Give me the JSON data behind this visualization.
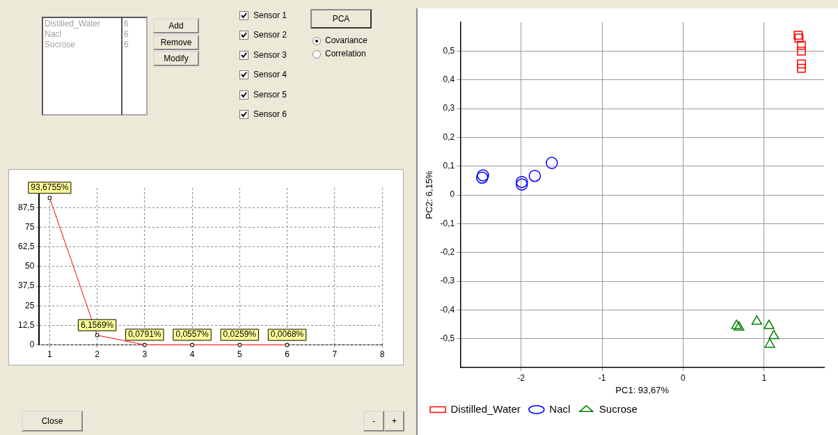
{
  "chart_data": [
    {
      "type": "other",
      "annotations": [
        "Distilled_Water",
        "6",
        "Nacl",
        "6",
        "Sucrose",
        "6",
        "Add",
        "Remove",
        "Modify",
        "Sensor 1",
        "Sensor 2",
        "Sensor 3",
        "Sensor 4",
        "Sensor 5",
        "Sensor 6",
        "PCA",
        "Covariance",
        "Correlation",
        "Close",
        "-",
        "+"
      ]
    },
    {
      "type": "line",
      "x": [
        1,
        2,
        3,
        4,
        5,
        6
      ],
      "values": [
        93.6755,
        6.1569,
        0.0791,
        0.0557,
        0.0259,
        0.0068
      ],
      "value_labels": [
        "93,6755%",
        "6,1569%",
        "0,0791%",
        "0,0557%",
        "0,0259%",
        "0,0068%"
      ],
      "color": "#ff0000",
      "marker": "square",
      "xlim": [
        0.78,
        8
      ],
      "xticks": [
        1,
        2,
        3,
        4,
        5,
        6,
        7,
        8
      ],
      "ylim": [
        0,
        100
      ],
      "yticks": [
        0,
        {
          "value": 12.5,
          "label": "12,5"
        },
        25,
        {
          "value": 37.5,
          "label": "37,5"
        },
        50,
        {
          "value": 62.5,
          "label": "62,5"
        },
        75,
        {
          "value": 87.5,
          "label": "87,5"
        }
      ],
      "grid": true
    },
    {
      "type": "scatter",
      "xlabel": "PC1: 93,67%",
      "ylabel": "PC2: 6,15%",
      "xlim": [
        -2.75,
        1.74
      ],
      "xticks": [
        -2,
        -1,
        0,
        1
      ],
      "ylim": [
        -0.6,
        0.6
      ],
      "yticks": [
        {
          "value": -0.5,
          "label": "-0,5"
        },
        {
          "value": -0.4,
          "label": "-0,4"
        },
        {
          "value": -0.3,
          "label": "-0,3"
        },
        {
          "value": -0.2,
          "label": "-0,2"
        },
        {
          "value": -0.1,
          "label": "-0,1"
        },
        0,
        {
          "value": 0.1,
          "label": "0,1"
        },
        {
          "value": 0.2,
          "label": "0,2"
        },
        {
          "value": 0.3,
          "label": "0,3"
        },
        {
          "value": 0.4,
          "label": "0,4"
        },
        {
          "value": 0.5,
          "label": "0,5"
        }
      ],
      "grid": true,
      "legend": "bottom",
      "series": [
        {
          "name": "Distilled_Water",
          "color": "#ff0000",
          "marker": "square",
          "x": [
            1.42,
            1.43,
            1.46,
            1.46,
            1.46,
            1.46
          ],
          "values": [
            0.555,
            0.545,
            0.52,
            0.5,
            0.455,
            0.44
          ]
        },
        {
          "name": "Nacl",
          "color": "#0000ff",
          "marker": "circle",
          "x": [
            -2.48,
            -2.47,
            -1.99,
            -1.99,
            -1.83,
            -1.62
          ],
          "values": [
            0.06,
            0.068,
            0.036,
            0.045,
            0.066,
            0.111
          ]
        },
        {
          "name": "Sucrose",
          "color": "#008000",
          "marker": "triangle",
          "x": [
            0.66,
            0.69,
            0.91,
            1.06,
            1.12,
            1.07
          ],
          "values": [
            -0.455,
            -0.46,
            -0.44,
            -0.455,
            -0.49,
            -0.52
          ]
        }
      ]
    }
  ]
}
